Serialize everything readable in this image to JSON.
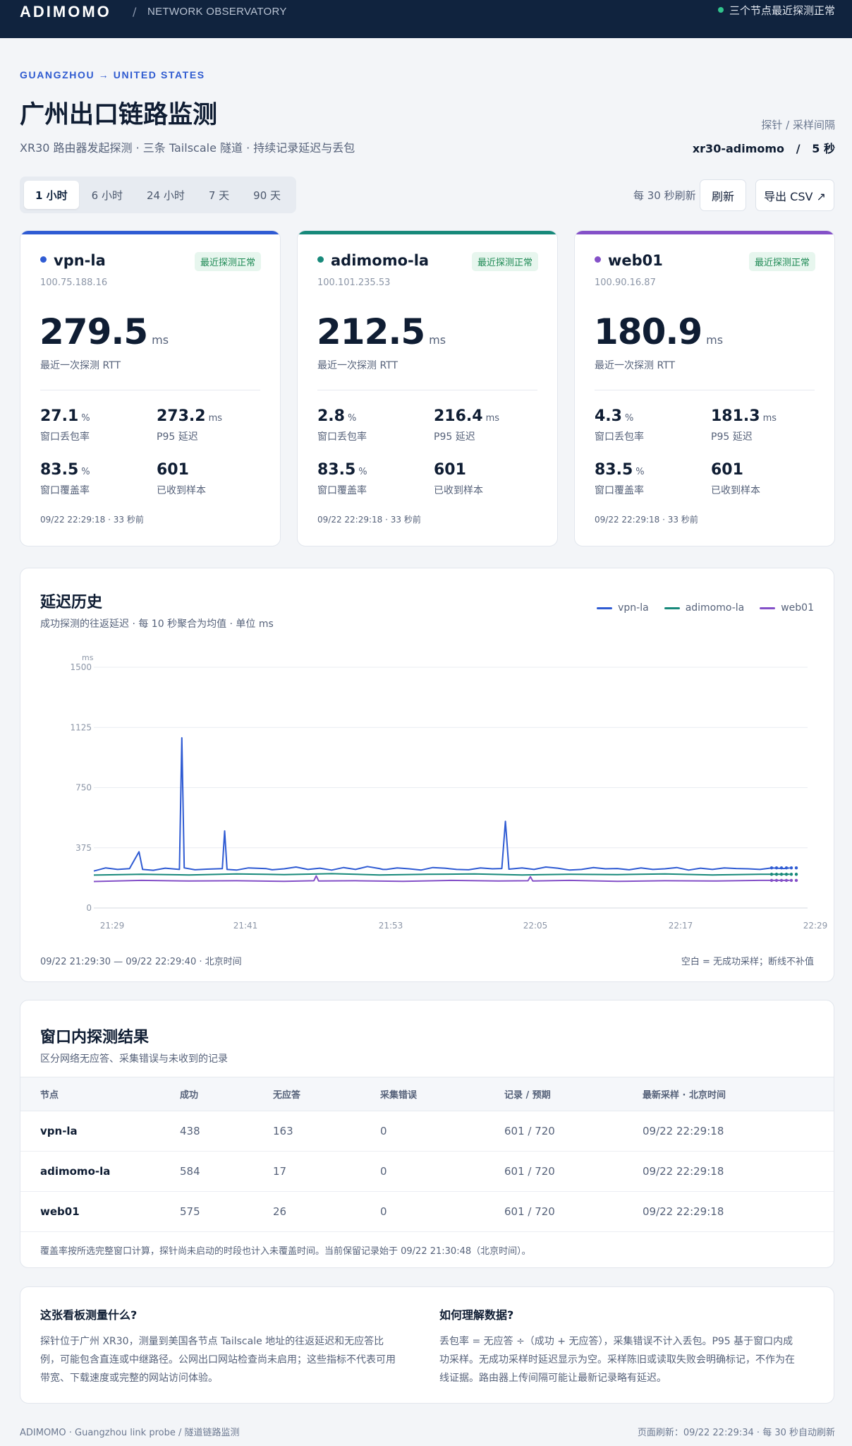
{
  "topbar": {
    "brand": "ADIMOMO",
    "separator": "/",
    "subtitle": "NETWORK OBSERVATORY",
    "status": "三个节点最近探测正常"
  },
  "header": {
    "eyebrow": "GUANGZHOU → UNITED STATES",
    "title": "广州出口链路监测",
    "subtitle": "XR30 路由器发起探测 · 三条 Tailscale 隧道 · 持续记录延迟与丢包",
    "probe_label": "探针 / 采样间隔",
    "probe_value": "xr30-adimomo   /   5 秒"
  },
  "controls": {
    "ranges": [
      "1 小时",
      "6 小时",
      "24 小时",
      "7 天",
      "90 天"
    ],
    "active_range": "1 小时",
    "refresh_note": "每 30 秒刷新",
    "refresh_button": "刷新",
    "export_button": "导出 CSV ↗"
  },
  "nodes": [
    {
      "name": "vpn-la",
      "color": "#2f5bd3",
      "badge": "最近探测正常",
      "ip": "100.75.188.16",
      "rtt": "279.5",
      "rtt_unit": "ms",
      "rtt_label": "最近一次探测 RTT",
      "loss": "27.1",
      "loss_unit": "%",
      "loss_label": "窗口丢包率",
      "p95": "273.2",
      "p95_unit": "ms",
      "p95_label": "P95 延迟",
      "coverage": "83.5",
      "coverage_unit": "%",
      "coverage_label": "窗口覆盖率",
      "samples": "601",
      "samples_label": "已收到样本",
      "time": "09/22 22:29:18 · 33 秒前"
    },
    {
      "name": "adimomo-la",
      "color": "#17897a",
      "badge": "最近探测正常",
      "ip": "100.101.235.53",
      "rtt": "212.5",
      "rtt_unit": "ms",
      "rtt_label": "最近一次探测 RTT",
      "loss": "2.8",
      "loss_unit": "%",
      "loss_label": "窗口丢包率",
      "p95": "216.4",
      "p95_unit": "ms",
      "p95_label": "P95 延迟",
      "coverage": "83.5",
      "coverage_unit": "%",
      "coverage_label": "窗口覆盖率",
      "samples": "601",
      "samples_label": "已收到样本",
      "time": "09/22 22:29:18 · 33 秒前"
    },
    {
      "name": "web01",
      "color": "#8450c8",
      "badge": "最近探测正常",
      "ip": "100.90.16.87",
      "rtt": "180.9",
      "rtt_unit": "ms",
      "rtt_label": "最近一次探测 RTT",
      "loss": "4.3",
      "loss_unit": "%",
      "loss_label": "窗口丢包率",
      "p95": "181.3",
      "p95_unit": "ms",
      "p95_label": "P95 延迟",
      "coverage": "83.5",
      "coverage_unit": "%",
      "coverage_label": "窗口覆盖率",
      "samples": "601",
      "samples_label": "已收到样本",
      "time": "09/22 22:29:18 · 33 秒前"
    }
  ],
  "latency_panel": {
    "title": "延迟历史",
    "subtitle": "成功探测的往返延迟 · 每 10 秒聚合为均值 · 单位 ms",
    "range": "09/22 21:29:30 — 09/22 22:29:40 · 北京时间",
    "note": "空白 = 无成功采样；断线不补值"
  },
  "chart_data": {
    "type": "line",
    "ylabel": "ms",
    "ylim": [
      0,
      1500
    ],
    "yticks": [
      "0",
      "375",
      "750",
      "1125",
      "1500"
    ],
    "xticks": [
      "21:29",
      "21:41",
      "21:53",
      "22:05",
      "22:17",
      "22:29"
    ],
    "x_domain_minutes": [
      0,
      60
    ],
    "grid": true,
    "legend": "top-right",
    "series": [
      {
        "name": "vpn-la",
        "color": "#2f5bd3",
        "x": [
          0,
          1,
          2,
          3,
          3.8,
          4.1,
          5,
          6,
          7.2,
          7.4,
          7.6,
          8.5,
          9.5,
          10.8,
          11,
          11.2,
          12,
          13,
          14.5,
          15,
          16,
          17,
          18,
          19,
          20,
          21,
          22,
          23,
          24,
          24.3,
          24.6,
          25.5,
          26.5,
          27.5,
          28.5,
          29.5,
          30.5,
          31.5,
          32.5,
          33.5,
          34.3,
          34.6,
          34.9,
          36,
          37,
          38,
          39,
          40,
          41,
          42,
          43,
          44,
          45,
          46,
          47,
          48,
          49,
          50,
          51,
          52,
          53,
          54,
          55,
          56,
          57,
          58,
          58.5
        ],
        "y": [
          230,
          250,
          240,
          245,
          350,
          240,
          235,
          248,
          240,
          1060,
          250,
          238,
          242,
          245,
          480,
          240,
          236,
          250,
          245,
          238,
          244,
          255,
          240,
          248,
          236,
          252,
          240,
          258,
          246,
          240,
          240,
          250,
          244,
          236,
          252,
          248,
          240,
          238,
          250,
          244,
          246,
          540,
          242,
          250,
          240,
          255,
          248,
          236,
          240,
          252,
          244,
          246,
          238,
          250,
          240,
          244,
          252,
          236,
          248,
          240,
          250,
          246,
          244,
          240,
          250,
          246,
          250
        ]
      },
      {
        "name": "adimomo-la",
        "color": "#17897a",
        "x": [
          0,
          4,
          8,
          12,
          16,
          20,
          24,
          28,
          32,
          36,
          40,
          44,
          48,
          52,
          56,
          58.5
        ],
        "y": [
          205,
          210,
          206,
          212,
          208,
          214,
          206,
          210,
          212,
          206,
          210,
          208,
          212,
          206,
          210,
          210
        ]
      },
      {
        "name": "web01",
        "color": "#8450c8",
        "x": [
          0,
          4,
          8,
          12,
          16,
          18.5,
          18.7,
          18.9,
          22,
          26,
          30,
          34,
          36.5,
          36.7,
          36.9,
          40,
          44,
          48,
          52,
          56,
          58.5
        ],
        "y": [
          165,
          172,
          168,
          170,
          166,
          170,
          200,
          168,
          170,
          166,
          172,
          168,
          170,
          195,
          168,
          172,
          166,
          170,
          168,
          172,
          172
        ]
      }
    ]
  },
  "results_panel": {
    "title": "窗口内探测结果",
    "subtitle": "区分网络无应答、采集错误与未收到的记录",
    "columns": [
      "节点",
      "成功",
      "无应答",
      "采集错误",
      "记录 / 预期",
      "最新采样 · 北京时间"
    ],
    "rows": [
      [
        "vpn-la",
        "438",
        "163",
        "0",
        "601 / 720",
        "09/22 22:29:18"
      ],
      [
        "adimomo-la",
        "584",
        "17",
        "0",
        "601 / 720",
        "09/22 22:29:18"
      ],
      [
        "web01",
        "575",
        "26",
        "0",
        "601 / 720",
        "09/22 22:29:18"
      ]
    ],
    "footnote": "覆盖率按所选完整窗口计算，探针尚未启动的时段也计入未覆盖时间。当前保留记录始于 09/22 21:30:48（北京时间）。"
  },
  "info": {
    "left_title": "这张看板测量什么?",
    "left_body": "探针位于广州 XR30，测量到美国各节点 Tailscale 地址的往返延迟和无应答比例，可能包含直连或中继路径。公网出口网站检查尚未启用；这些指标不代表可用带宽、下载速度或完整的网站访问体验。",
    "right_title": "如何理解数据?",
    "right_body": "丢包率 = 无应答 ÷（成功 + 无应答），采集错误不计入丢包。P95 基于窗口内成功采样。无成功采样时延迟显示为空。采样陈旧或读取失败会明确标记，不作为在线证据。路由器上传间隔可能让最新记录略有延迟。"
  },
  "footer": {
    "left": "ADIMOMO · Guangzhou link probe / 隧道链路监测",
    "right": "页面刷新：09/22 22:29:34 · 每 30 秒自动刷新"
  }
}
